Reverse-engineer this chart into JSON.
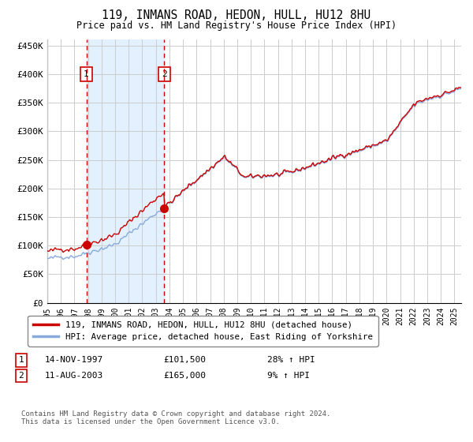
{
  "title": "119, INMANS ROAD, HEDON, HULL, HU12 8HU",
  "subtitle": "Price paid vs. HM Land Registry's House Price Index (HPI)",
  "legend_line1": "119, INMANS ROAD, HEDON, HULL, HU12 8HU (detached house)",
  "legend_line2": "HPI: Average price, detached house, East Riding of Yorkshire",
  "footnote": "Contains HM Land Registry data © Crown copyright and database right 2024.\nThis data is licensed under the Open Government Licence v3.0.",
  "transaction1_date": "14-NOV-1997",
  "transaction1_price": "£101,500",
  "transaction1_hpi": "28% ↑ HPI",
  "transaction2_date": "11-AUG-2003",
  "transaction2_price": "£165,000",
  "transaction2_hpi": "9% ↑ HPI",
  "sale1_year": 1997.876,
  "sale1_price": 101500,
  "sale2_year": 2003.618,
  "sale2_price": 165000,
  "price_line_color": "#cc0000",
  "hpi_line_color": "#88aadd",
  "shade_color": "#ddeeff",
  "vline_color": "#cc0000",
  "ylim_min": 0,
  "ylim_max": 460000,
  "yticks": [
    0,
    50000,
    100000,
    150000,
    200000,
    250000,
    300000,
    350000,
    400000,
    450000
  ],
  "ytick_labels": [
    "£0",
    "£50K",
    "£100K",
    "£150K",
    "£200K",
    "£250K",
    "£300K",
    "£350K",
    "£400K",
    "£450K"
  ],
  "background_color": "#ffffff",
  "grid_color": "#cccccc"
}
